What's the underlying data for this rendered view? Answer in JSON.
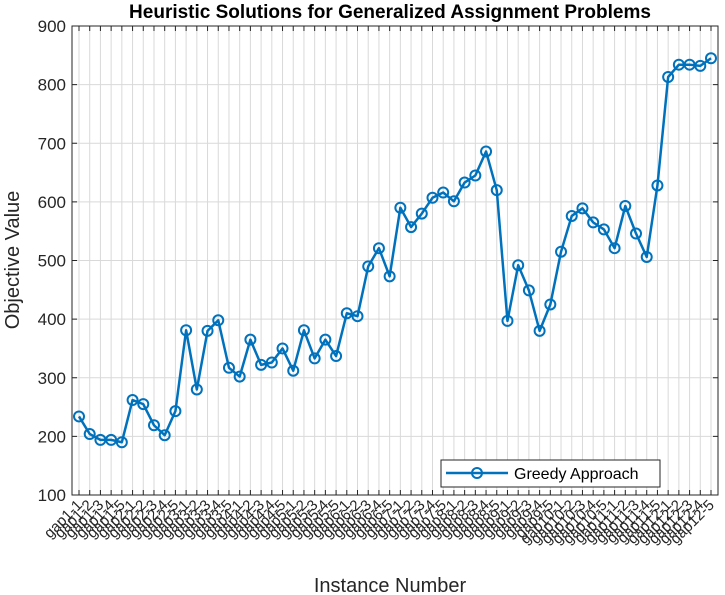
{
  "chart_data": {
    "type": "line",
    "title": "Heuristic Solutions for Generalized Assignment Problems",
    "xlabel": "Instance Number",
    "ylabel": "Objective Value",
    "ylim": [
      100,
      900
    ],
    "yticks": [
      100,
      200,
      300,
      400,
      500,
      600,
      700,
      800,
      900
    ],
    "grid": true,
    "legend_location": "bottom-right",
    "categories": [
      "gap1-1",
      "gap1-2",
      "gap1-3",
      "gap1-4",
      "gap1-5",
      "gap2-1",
      "gap2-2",
      "gap2-3",
      "gap2-4",
      "gap2-5",
      "gap3-1",
      "gap3-2",
      "gap3-3",
      "gap3-4",
      "gap3-5",
      "gap4-1",
      "gap4-2",
      "gap4-3",
      "gap4-4",
      "gap4-5",
      "gap5-1",
      "gap5-2",
      "gap5-3",
      "gap5-4",
      "gap5-5",
      "gap6-1",
      "gap6-2",
      "gap6-3",
      "gap6-4",
      "gap6-5",
      "gap7-1",
      "gap7-2",
      "gap7-3",
      "gap7-4",
      "gap7-5",
      "gap8-1",
      "gap8-2",
      "gap8-3",
      "gap8-4",
      "gap8-5",
      "gap9-1",
      "gap9-2",
      "gap9-3",
      "gap9-4",
      "gap9-5",
      "gap10-1",
      "gap10-2",
      "gap10-3",
      "gap10-4",
      "gap10-5",
      "gap11-1",
      "gap11-2",
      "gap11-3",
      "gap11-4",
      "gap11-5",
      "gap12-1",
      "gap12-2",
      "gap12-3",
      "gap12-4",
      "gap12-5"
    ],
    "series": [
      {
        "name": "Greedy Approach",
        "color": "#0072BD",
        "marker": "circle",
        "values": [
          234,
          204,
          194,
          194,
          190,
          262,
          255,
          219,
          202,
          243,
          381,
          280,
          380,
          398,
          317,
          302,
          365,
          322,
          326,
          350,
          312,
          381,
          333,
          365,
          337,
          410,
          405,
          490,
          521,
          473,
          590,
          557,
          580,
          607,
          616,
          601,
          633,
          645,
          686,
          620,
          397,
          492,
          449,
          380,
          425,
          515,
          576,
          589,
          565,
          553,
          521,
          593,
          546,
          506,
          628,
          813,
          834,
          834,
          832,
          845
        ]
      }
    ]
  }
}
